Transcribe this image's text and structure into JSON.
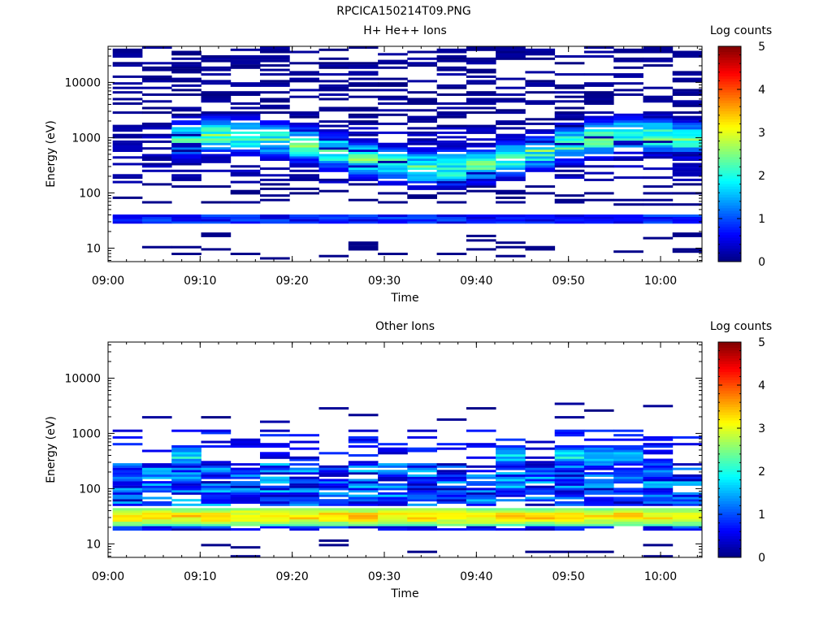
{
  "figure": {
    "title": "RPCICA150214T09.PNG"
  },
  "chart_data": [
    {
      "type": "heatmap",
      "title": "H+ He++ Ions",
      "xlabel": "Time",
      "ylabel": "Energy (eV)",
      "x_ticks": [
        "09:00",
        "09:10",
        "09:20",
        "09:30",
        "09:40",
        "09:50",
        "10:00"
      ],
      "y_ticks": [
        "10",
        "100",
        "1000",
        "10000"
      ],
      "y_scale": "log",
      "ylim": [
        5.7,
        45000
      ],
      "x_range_minutes": [
        0,
        64.5
      ],
      "colorbar": {
        "label": "Log counts",
        "ticks": [
          "0",
          "1",
          "2",
          "3",
          "4",
          "5"
        ],
        "range": [
          0,
          5
        ]
      },
      "background": "#ffffff",
      "features": {
        "sparse_high_energy_max_log": 0.2,
        "main_band_ev": [
          300,
          1500
        ],
        "main_band_peak_log_counts": 2.8,
        "low_energy_band_ev": [
          28,
          42
        ],
        "low_energy_band_log_counts": 0.7
      }
    },
    {
      "type": "heatmap",
      "title": "Other Ions",
      "xlabel": "Time",
      "ylabel": "Energy (eV)",
      "x_ticks": [
        "09:00",
        "09:10",
        "09:20",
        "09:30",
        "09:40",
        "09:50",
        "10:00"
      ],
      "y_ticks": [
        "10",
        "100",
        "1000",
        "10000"
      ],
      "y_scale": "log",
      "ylim": [
        5.7,
        45000
      ],
      "x_range_minutes": [
        0,
        64.5
      ],
      "colorbar": {
        "label": "Log counts",
        "ticks": [
          "0",
          "1",
          "2",
          "3",
          "4",
          "5"
        ],
        "range": [
          0,
          5
        ]
      },
      "background": "#ffffff",
      "features": {
        "low_energy_band_ev": [
          22,
          45
        ],
        "low_energy_band_peak_log_counts": 3.6,
        "mid_band_ev": [
          50,
          300
        ],
        "mid_band_log_counts": 1.0,
        "upper_band_ev": [
          300,
          700
        ],
        "upper_band_peak_log_counts": 2.3
      }
    }
  ]
}
